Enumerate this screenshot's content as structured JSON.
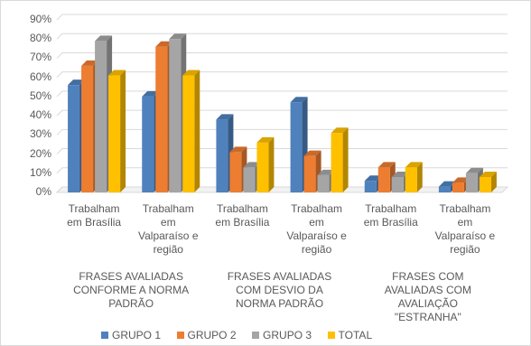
{
  "chart_data": {
    "type": "bar3d",
    "categories": [
      "Trabalham em Brasília",
      "Trabalham em Valparaíso e região",
      "Trabalham em Brasília",
      "Trabalham em Valparaíso e região",
      "Trabalham em Brasília",
      "Trabalham em Valparaíso e região"
    ],
    "groups": [
      "FRASES AVALIADAS CONFORME A NORMA PADRÃO",
      "FRASES AVALIADAS COM DESVIO DA NORMA PADRÃO",
      "FRASES COM AVALIADAS COM AVALIAÇÃO \"ESTRANHA\""
    ],
    "series": [
      {
        "name": "GRUPO 1",
        "color": "#4f81bd",
        "values": [
          56,
          50,
          38,
          47,
          6,
          3
        ]
      },
      {
        "name": "GRUPO 2",
        "color": "#ed7d31",
        "values": [
          66,
          76,
          21,
          19,
          13,
          5
        ]
      },
      {
        "name": "GRUPO 3",
        "color": "#a5a5a5",
        "values": [
          79,
          80,
          13,
          9,
          8,
          10
        ]
      },
      {
        "name": "TOTAL",
        "color": "#ffc000",
        "values": [
          61,
          61,
          26,
          31,
          13,
          8
        ]
      }
    ],
    "ylim": [
      0,
      90
    ],
    "yticks": [
      {
        "value": 0,
        "label": "0%"
      },
      {
        "value": 10,
        "label": "10%"
      },
      {
        "value": 20,
        "label": "20%"
      },
      {
        "value": 30,
        "label": "30%"
      },
      {
        "value": 40,
        "label": "40%"
      },
      {
        "value": 50,
        "label": "50%"
      },
      {
        "value": 60,
        "label": "60%"
      },
      {
        "value": 70,
        "label": "70%"
      },
      {
        "value": 80,
        "label": "80%"
      },
      {
        "value": 90,
        "label": "90%"
      }
    ],
    "grid": true,
    "legend": "bottom"
  }
}
